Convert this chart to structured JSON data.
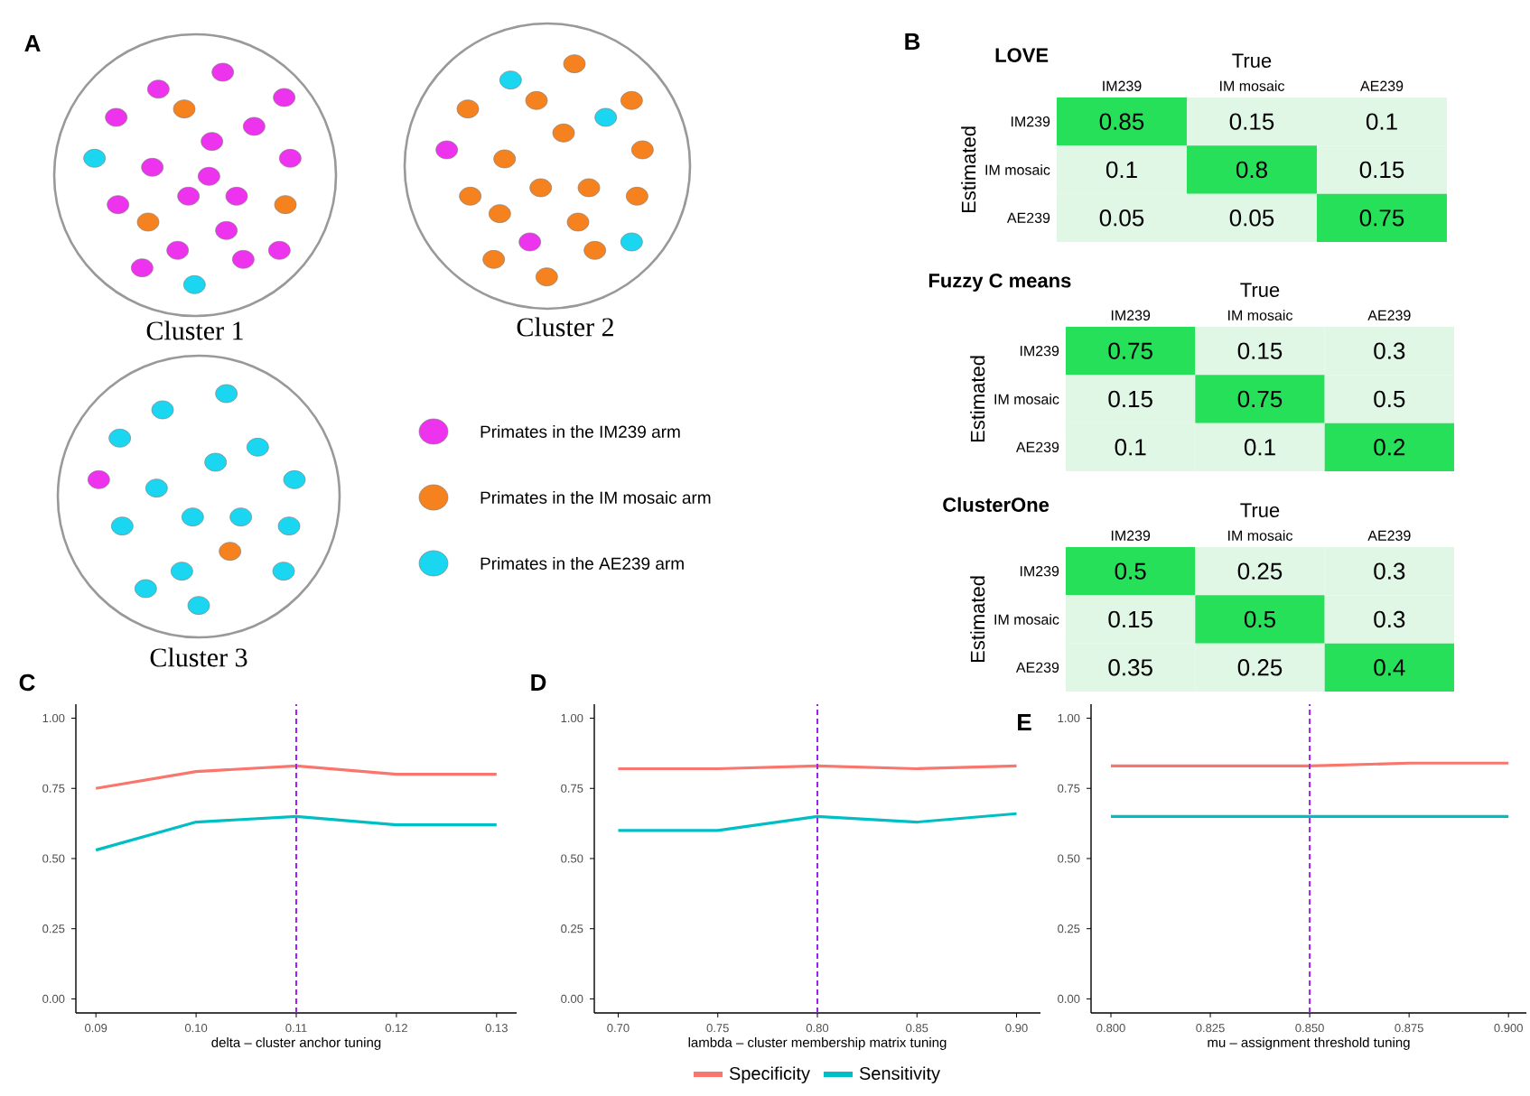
{
  "chart_data": [
    {
      "type": "other",
      "annotations": [
        "A",
        "Cluster 1",
        "Cluster 2",
        "Cluster 3"
      ],
      "legend": "right",
      "series": [
        {
          "name": "Primates in the IM239 arm",
          "color": "#ee33ee"
        },
        {
          "name": "Primates in the IM mosaic arm",
          "color": "#f5821f"
        },
        {
          "name": "Primates in the AE239 arm",
          "color": "#1ad6f0"
        }
      ]
    },
    {
      "type": "heatmap",
      "title": "LOVE",
      "xlabel": "True",
      "ylabel": "Estimated",
      "annotations": [
        "B"
      ],
      "categories": [
        "IM239",
        "IM mosaic",
        "AE239"
      ],
      "y_categories": [
        "IM239",
        "IM mosaic",
        "AE239"
      ],
      "colors": [
        "#e1f7e5",
        "#27e05a"
      ],
      "data_labels": true,
      "cells": [
        [
          0.85,
          0.15,
          0.1
        ],
        [
          0.1,
          0.8,
          0.15
        ],
        [
          0.05,
          0.05,
          0.75
        ]
      ]
    },
    {
      "type": "heatmap",
      "title": "Fuzzy C means",
      "xlabel": "True",
      "ylabel": "Estimated",
      "categories": [
        "IM239",
        "IM mosaic",
        "AE239"
      ],
      "y_categories": [
        "IM239",
        "IM mosaic",
        "AE239"
      ],
      "colors": [
        "#e1f7e5",
        "#27e05a"
      ],
      "data_labels": true,
      "cells": [
        [
          0.75,
          0.15,
          0.3
        ],
        [
          0.15,
          0.75,
          0.5
        ],
        [
          0.1,
          0.1,
          0.2
        ]
      ]
    },
    {
      "type": "heatmap",
      "title": "ClusterOne",
      "xlabel": "True",
      "ylabel": "Estimated",
      "categories": [
        "IM239",
        "IM mosaic",
        "AE239"
      ],
      "y_categories": [
        "IM239",
        "IM mosaic",
        "AE239"
      ],
      "colors": [
        "#e1f7e5",
        "#27e05a"
      ],
      "data_labels": true,
      "cells": [
        [
          0.5,
          0.25,
          0.3
        ],
        [
          0.15,
          0.5,
          0.3
        ],
        [
          0.35,
          0.25,
          0.4
        ]
      ]
    },
    {
      "type": "line",
      "xlabel": "delta – cluster anchor tuning",
      "annotations": [
        "C"
      ],
      "x": [
        0.09,
        0.1,
        0.11,
        0.12,
        0.13
      ],
      "xlim": [
        0.088,
        0.132
      ],
      "ylim": [
        -0.05,
        1.05
      ],
      "xticks": [
        0.09,
        {
          "value": 0.1,
          "label": "0.10"
        },
        0.11,
        0.12,
        0.13
      ],
      "yticks": [
        {
          "value": 0,
          "label": "0.00"
        },
        {
          "value": 0.25,
          "label": "0.25"
        },
        {
          "value": 0.5,
          "label": "0.50"
        },
        {
          "value": 0.75,
          "label": "0.75"
        },
        {
          "value": 1,
          "label": "1.00"
        }
      ],
      "ref_lines": [
        {
          "axis": "x",
          "value": 0.11,
          "color": "#a020f0",
          "line_style": "dashed"
        }
      ],
      "series": [
        {
          "color": "#f8766d",
          "values": [
            0.75,
            0.81,
            0.83,
            0.8,
            0.8
          ]
        },
        {
          "color": "#00bfc4",
          "values": [
            0.53,
            0.63,
            0.65,
            0.62,
            0.62
          ]
        }
      ]
    },
    {
      "type": "line",
      "xlabel": "lambda – cluster membership matrix tuning",
      "annotations": [
        "D"
      ],
      "legend": "bottom",
      "x": [
        0.7,
        0.75,
        0.8,
        0.85,
        0.9
      ],
      "xlim": [
        0.688,
        0.912
      ],
      "ylim": [
        -0.05,
        1.05
      ],
      "xticks": [
        {
          "value": 0.7,
          "label": "0.70"
        },
        0.75,
        {
          "value": 0.8,
          "label": "0.80"
        },
        0.85,
        {
          "value": 0.9,
          "label": "0.90"
        }
      ],
      "yticks": [
        {
          "value": 0,
          "label": "0.00"
        },
        {
          "value": 0.25,
          "label": "0.25"
        },
        {
          "value": 0.5,
          "label": "0.50"
        },
        {
          "value": 0.75,
          "label": "0.75"
        },
        {
          "value": 1,
          "label": "1.00"
        }
      ],
      "ref_lines": [
        {
          "axis": "x",
          "value": 0.8,
          "color": "#a020f0",
          "line_style": "dashed"
        }
      ],
      "series": [
        {
          "name": "Specificity",
          "color": "#f8766d",
          "values": [
            0.82,
            0.82,
            0.83,
            0.82,
            0.83
          ]
        },
        {
          "name": "Sensitivity",
          "color": "#00bfc4",
          "values": [
            0.6,
            0.6,
            0.65,
            0.63,
            0.66
          ]
        }
      ]
    },
    {
      "type": "line",
      "xlabel": "mu – assignment threshold tuning",
      "annotations": [
        "E"
      ],
      "x": [
        0.8,
        0.825,
        0.85,
        0.875,
        0.9
      ],
      "xlim": [
        0.795,
        0.9045
      ],
      "ylim": [
        -0.05,
        1.05
      ],
      "xticks": [
        {
          "value": 0.8,
          "label": "0.800"
        },
        0.825,
        {
          "value": 0.85,
          "label": "0.850"
        },
        0.875,
        {
          "value": 0.9,
          "label": "0.900"
        }
      ],
      "yticks": [
        {
          "value": 0,
          "label": "0.00"
        },
        {
          "value": 0.25,
          "label": "0.25"
        },
        {
          "value": 0.5,
          "label": "0.50"
        },
        {
          "value": 0.75,
          "label": "0.75"
        },
        {
          "value": 1,
          "label": "1.00"
        }
      ],
      "ref_lines": [
        {
          "axis": "x",
          "value": 0.85,
          "color": "#a020f0",
          "line_style": "dashed"
        }
      ],
      "series": [
        {
          "color": "#f8766d",
          "values": [
            0.83,
            0.83,
            0.83,
            0.84,
            0.84
          ]
        },
        {
          "color": "#00bfc4",
          "values": [
            0.65,
            0.65,
            0.65,
            0.65,
            0.65
          ]
        }
      ]
    }
  ]
}
